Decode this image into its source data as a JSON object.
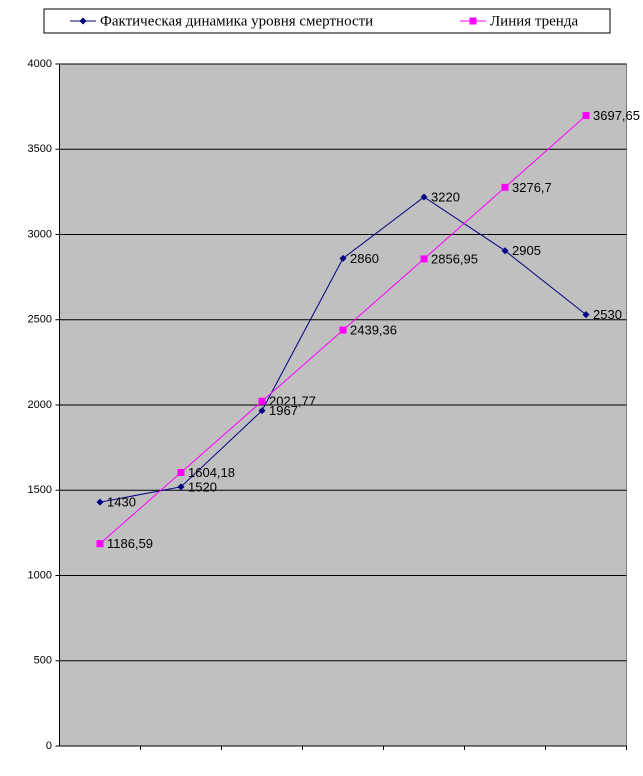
{
  "chart_data": {
    "type": "line",
    "categories": [
      null,
      null,
      null,
      null,
      null,
      null,
      null
    ],
    "series": [
      {
        "name": "Фактическая динамика уровня смертности",
        "color": "#000080",
        "marker": "diamond",
        "values": [
          1430,
          1520,
          1967,
          2860,
          3220,
          2905,
          2530
        ]
      },
      {
        "name": "Линия тренда",
        "color": "#ff00ff",
        "marker": "square",
        "values": [
          1186.59,
          1604.18,
          2021.77,
          2439.36,
          2856.95,
          3276.7,
          3697.65
        ],
        "value_labels": [
          "1186,59",
          "1604,18",
          "2021,77",
          "2439,36",
          "2856,95",
          "3276,7",
          "3697,65"
        ]
      }
    ],
    "ylim": [
      0,
      4000
    ],
    "yticks": [
      0,
      500,
      1000,
      1500,
      2000,
      2500,
      3000,
      3500,
      4000
    ],
    "grid": true,
    "legend": "top"
  }
}
